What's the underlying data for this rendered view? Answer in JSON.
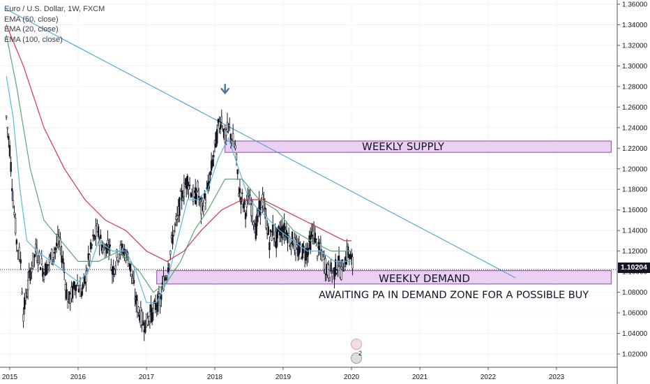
{
  "legend": {
    "symbol": "Euro / U.S. Dollar, 1W, FXCM",
    "ema1": "EMA (50, close)",
    "ema2": "EMA (20, close)",
    "ema3": "EMA (100, close)"
  },
  "last_price": "1.10204",
  "annotations": {
    "supply": "WEEKLY SUPPLY",
    "demand": "WEEKLY DEMAND",
    "note": "AWAITING PA IN DEMAND ZONE FOR A POSSIBLE BUY",
    "event_count": "2"
  },
  "colors": {
    "ema50": "#5aa56e",
    "ema20": "#5ab6e6",
    "ema100": "#d3364b",
    "zone_fill": "#e6c9f0",
    "zone_border": "#9b3fb5",
    "trendline": "#3a9bd9",
    "arrow": "#4a78a0"
  },
  "chart_data": {
    "type": "line",
    "title": "Euro / U.S. Dollar, 1W, FXCM",
    "xlabel": "",
    "ylabel": "",
    "x_ticks": [
      "2015",
      "2016",
      "2017",
      "2018",
      "2019",
      "2020",
      "2021",
      "2022",
      "2023"
    ],
    "y_ticks": [
      "1.36000",
      "1.34000",
      "1.32000",
      "1.30000",
      "1.28000",
      "1.26000",
      "1.24000",
      "1.22000",
      "1.20000",
      "1.18000",
      "1.16000",
      "1.14000",
      "1.12000",
      "1.10000",
      "1.08000",
      "1.06000",
      "1.04000",
      "1.02000"
    ],
    "ylim": [
      1.008,
      1.364
    ],
    "xlim": [
      2014.9,
      2023.9
    ],
    "grid": true,
    "close_price": {
      "name": "Euro / U.S. Dollar",
      "points": [
        [
          2014.95,
          1.25
        ],
        [
          2015.0,
          1.22
        ],
        [
          2015.05,
          1.17
        ],
        [
          2015.1,
          1.13
        ],
        [
          2015.16,
          1.11
        ],
        [
          2015.2,
          1.06
        ],
        [
          2015.25,
          1.08
        ],
        [
          2015.3,
          1.1
        ],
        [
          2015.38,
          1.12
        ],
        [
          2015.45,
          1.11
        ],
        [
          2015.5,
          1.1
        ],
        [
          2015.58,
          1.11
        ],
        [
          2015.65,
          1.12
        ],
        [
          2015.72,
          1.13
        ],
        [
          2015.78,
          1.11
        ],
        [
          2015.85,
          1.07
        ],
        [
          2015.92,
          1.08
        ],
        [
          2015.97,
          1.09
        ],
        [
          2016.05,
          1.08
        ],
        [
          2016.1,
          1.09
        ],
        [
          2016.15,
          1.11
        ],
        [
          2016.22,
          1.13
        ],
        [
          2016.28,
          1.14
        ],
        [
          2016.33,
          1.13
        ],
        [
          2016.38,
          1.12
        ],
        [
          2016.45,
          1.13
        ],
        [
          2016.5,
          1.1
        ],
        [
          2016.55,
          1.11
        ],
        [
          2016.6,
          1.12
        ],
        [
          2016.68,
          1.12
        ],
        [
          2016.75,
          1.11
        ],
        [
          2016.8,
          1.09
        ],
        [
          2016.85,
          1.07
        ],
        [
          2016.9,
          1.06
        ],
        [
          2016.95,
          1.05
        ],
        [
          2017.0,
          1.05
        ],
        [
          2017.05,
          1.06
        ],
        [
          2017.1,
          1.06
        ],
        [
          2017.15,
          1.07
        ],
        [
          2017.2,
          1.07
        ],
        [
          2017.25,
          1.09
        ],
        [
          2017.3,
          1.1
        ],
        [
          2017.35,
          1.12
        ],
        [
          2017.4,
          1.14
        ],
        [
          2017.45,
          1.15
        ],
        [
          2017.5,
          1.17
        ],
        [
          2017.55,
          1.18
        ],
        [
          2017.6,
          1.19
        ],
        [
          2017.65,
          1.18
        ],
        [
          2017.7,
          1.17
        ],
        [
          2017.75,
          1.18
        ],
        [
          2017.8,
          1.16
        ],
        [
          2017.85,
          1.17
        ],
        [
          2017.9,
          1.18
        ],
        [
          2017.95,
          1.2
        ],
        [
          2018.0,
          1.22
        ],
        [
          2018.05,
          1.24
        ],
        [
          2018.1,
          1.25
        ],
        [
          2018.15,
          1.23
        ],
        [
          2018.2,
          1.24
        ],
        [
          2018.25,
          1.23
        ],
        [
          2018.3,
          1.22
        ],
        [
          2018.35,
          1.18
        ],
        [
          2018.4,
          1.17
        ],
        [
          2018.45,
          1.16
        ],
        [
          2018.5,
          1.17
        ],
        [
          2018.55,
          1.16
        ],
        [
          2018.6,
          1.14
        ],
        [
          2018.65,
          1.16
        ],
        [
          2018.7,
          1.17
        ],
        [
          2018.75,
          1.15
        ],
        [
          2018.8,
          1.13
        ],
        [
          2018.85,
          1.14
        ],
        [
          2018.9,
          1.13
        ],
        [
          2018.95,
          1.14
        ],
        [
          2019.0,
          1.14
        ],
        [
          2019.05,
          1.14
        ],
        [
          2019.1,
          1.13
        ],
        [
          2019.15,
          1.13
        ],
        [
          2019.2,
          1.12
        ],
        [
          2019.25,
          1.12
        ],
        [
          2019.3,
          1.12
        ],
        [
          2019.35,
          1.12
        ],
        [
          2019.4,
          1.13
        ],
        [
          2019.45,
          1.14
        ],
        [
          2019.5,
          1.12
        ],
        [
          2019.55,
          1.12
        ],
        [
          2019.6,
          1.11
        ],
        [
          2019.65,
          1.1
        ],
        [
          2019.7,
          1.1
        ],
        [
          2019.75,
          1.1
        ],
        [
          2019.8,
          1.11
        ],
        [
          2019.85,
          1.1
        ],
        [
          2019.9,
          1.11
        ],
        [
          2019.95,
          1.12
        ],
        [
          2020.0,
          1.11
        ],
        [
          2020.03,
          1.102
        ]
      ]
    },
    "series": [
      {
        "name": "EMA (20, close)",
        "color": "#5ab6e6",
        "points": [
          [
            2014.95,
            1.29
          ],
          [
            2015.05,
            1.25
          ],
          [
            2015.15,
            1.18
          ],
          [
            2015.25,
            1.13
          ],
          [
            2015.4,
            1.12
          ],
          [
            2015.6,
            1.11
          ],
          [
            2015.8,
            1.1
          ],
          [
            2016.0,
            1.09
          ],
          [
            2016.15,
            1.1
          ],
          [
            2016.3,
            1.13
          ],
          [
            2016.5,
            1.12
          ],
          [
            2016.7,
            1.12
          ],
          [
            2016.85,
            1.1
          ],
          [
            2017.0,
            1.07
          ],
          [
            2017.15,
            1.07
          ],
          [
            2017.3,
            1.09
          ],
          [
            2017.45,
            1.13
          ],
          [
            2017.6,
            1.17
          ],
          [
            2017.75,
            1.17
          ],
          [
            2017.9,
            1.18
          ],
          [
            2018.05,
            1.21
          ],
          [
            2018.2,
            1.23
          ],
          [
            2018.35,
            1.2
          ],
          [
            2018.5,
            1.17
          ],
          [
            2018.65,
            1.16
          ],
          [
            2018.8,
            1.15
          ],
          [
            2018.95,
            1.14
          ],
          [
            2019.15,
            1.13
          ],
          [
            2019.35,
            1.12
          ],
          [
            2019.55,
            1.12
          ],
          [
            2019.75,
            1.11
          ],
          [
            2019.95,
            1.11
          ],
          [
            2020.0,
            1.11
          ]
        ]
      },
      {
        "name": "EMA (50, close)",
        "color": "#5aa56e",
        "points": [
          [
            2014.95,
            1.33
          ],
          [
            2015.1,
            1.28
          ],
          [
            2015.3,
            1.2
          ],
          [
            2015.5,
            1.15
          ],
          [
            2015.75,
            1.13
          ],
          [
            2016.0,
            1.11
          ],
          [
            2016.3,
            1.11
          ],
          [
            2016.6,
            1.12
          ],
          [
            2016.9,
            1.1
          ],
          [
            2017.1,
            1.08
          ],
          [
            2017.3,
            1.09
          ],
          [
            2017.5,
            1.11
          ],
          [
            2017.7,
            1.14
          ],
          [
            2017.9,
            1.16
          ],
          [
            2018.15,
            1.19
          ],
          [
            2018.4,
            1.19
          ],
          [
            2018.65,
            1.17
          ],
          [
            2018.9,
            1.16
          ],
          [
            2019.15,
            1.14
          ],
          [
            2019.4,
            1.13
          ],
          [
            2019.7,
            1.12
          ],
          [
            2019.95,
            1.12
          ],
          [
            2020.0,
            1.12
          ]
        ]
      },
      {
        "name": "EMA (100, close)",
        "color": "#d3364b",
        "points": [
          [
            2014.95,
            1.34
          ],
          [
            2015.2,
            1.3
          ],
          [
            2015.5,
            1.24
          ],
          [
            2015.8,
            1.2
          ],
          [
            2016.1,
            1.17
          ],
          [
            2016.4,
            1.15
          ],
          [
            2016.7,
            1.14
          ],
          [
            2017.0,
            1.12
          ],
          [
            2017.3,
            1.11
          ],
          [
            2017.55,
            1.12
          ],
          [
            2017.8,
            1.14
          ],
          [
            2018.1,
            1.16
          ],
          [
            2018.4,
            1.17
          ],
          [
            2018.7,
            1.17
          ],
          [
            2019.0,
            1.16
          ],
          [
            2019.3,
            1.15
          ],
          [
            2019.6,
            1.14
          ],
          [
            2019.9,
            1.13
          ],
          [
            2020.0,
            1.13
          ]
        ]
      }
    ],
    "trendline": [
      [
        2014.95,
        1.355
      ],
      [
        2022.4,
        1.094
      ]
    ],
    "zones": [
      {
        "name": "WEEKLY SUPPLY",
        "y_range": [
          1.216,
          1.227
        ],
        "x_range": [
          2018.15,
          2023.8
        ]
      },
      {
        "name": "WEEKLY DEMAND",
        "y_range": [
          1.088,
          1.101
        ],
        "x_range": [
          2017.15,
          2023.8
        ]
      }
    ],
    "last_price": 1.10204
  }
}
